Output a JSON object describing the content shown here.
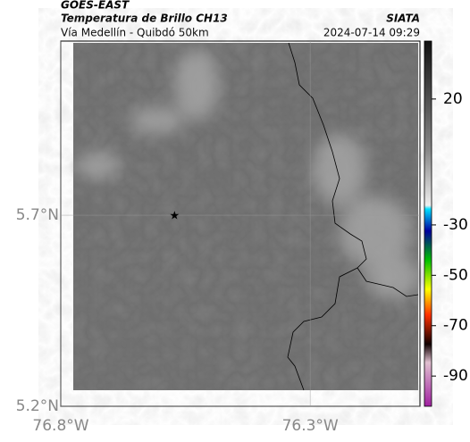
{
  "header": {
    "source": "GOES-EAST",
    "title": "Temperatura de Brillo CH13",
    "agency": "SIATA",
    "subtitle": "Vía Medellín - Quibdó 50km",
    "datetime": "2024-07-14 09:29"
  },
  "map": {
    "lonlim": [
      -76.8,
      -76.08
    ],
    "latlim": [
      5.2,
      6.156
    ],
    "lon_ticks": [
      {
        "value": -76.8,
        "label": "76.8°W"
      },
      {
        "value": -76.3,
        "label": "76.3°W"
      }
    ],
    "lat_ticks": [
      {
        "value": 5.7,
        "label": "5.7°N"
      },
      {
        "value": 5.2,
        "label": "5.2°N"
      }
    ],
    "marker": {
      "lon": -76.572,
      "lat": 5.7
    }
  },
  "colorbar": {
    "lim": [
      43,
      -102
    ],
    "ticks": [
      20,
      -30,
      -50,
      -70,
      -90
    ]
  }
}
